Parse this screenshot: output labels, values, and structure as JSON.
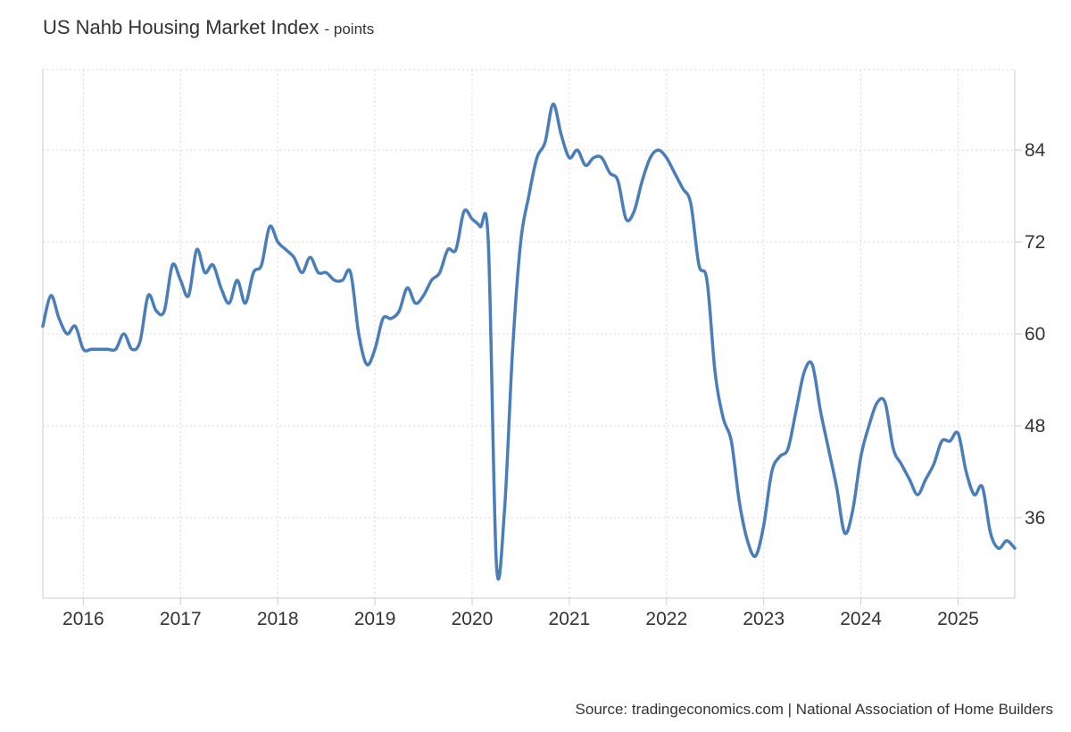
{
  "header": {
    "title": "US Nahb Housing Market Index",
    "unit_label": "- points"
  },
  "footer": {
    "source": "Source: tradingeconomics.com | National Association of Home Builders"
  },
  "colors": {
    "line": "#4a7ebb",
    "grid": "#d9d9d9",
    "axis": "#cccccc",
    "text": "#333333"
  },
  "chart_data": {
    "type": "line",
    "title": "US Nahb Housing Market Index",
    "subtitle": "- points",
    "xlabel": "",
    "ylabel": "",
    "x_tick_labels": [
      "2016",
      "2017",
      "2018",
      "2019",
      "2020",
      "2021",
      "2022",
      "2023",
      "2024",
      "2025"
    ],
    "y_ticks": [
      36,
      48,
      60,
      72,
      84
    ],
    "xlim": [
      "2015-08",
      "2025-08"
    ],
    "ylim": [
      25.5,
      94.5
    ],
    "grid": true,
    "y_axis_position": "right",
    "series": [
      {
        "x": [
          "2015-08",
          "2015-09",
          "2015-10",
          "2015-11",
          "2015-12",
          "2016-01",
          "2016-02",
          "2016-03",
          "2016-04",
          "2016-05",
          "2016-06",
          "2016-07",
          "2016-08",
          "2016-09",
          "2016-10",
          "2016-11",
          "2016-12",
          "2017-01",
          "2017-02",
          "2017-03",
          "2017-04",
          "2017-05",
          "2017-06",
          "2017-07",
          "2017-08",
          "2017-09",
          "2017-10",
          "2017-11",
          "2017-12",
          "2018-01",
          "2018-02",
          "2018-03",
          "2018-04",
          "2018-05",
          "2018-06",
          "2018-07",
          "2018-08",
          "2018-09",
          "2018-10",
          "2018-11",
          "2018-12",
          "2019-01",
          "2019-02",
          "2019-03",
          "2019-04",
          "2019-05",
          "2019-06",
          "2019-07",
          "2019-08",
          "2019-09",
          "2019-10",
          "2019-11",
          "2019-12",
          "2020-01",
          "2020-02",
          "2020-03",
          "2020-04",
          "2020-05",
          "2020-06",
          "2020-07",
          "2020-08",
          "2020-09",
          "2020-10",
          "2020-11",
          "2020-12",
          "2021-01",
          "2021-02",
          "2021-03",
          "2021-04",
          "2021-05",
          "2021-06",
          "2021-07",
          "2021-08",
          "2021-09",
          "2021-10",
          "2021-11",
          "2021-12",
          "2022-01",
          "2022-02",
          "2022-03",
          "2022-04",
          "2022-05",
          "2022-06",
          "2022-07",
          "2022-08",
          "2022-09",
          "2022-10",
          "2022-11",
          "2022-12",
          "2023-01",
          "2023-02",
          "2023-03",
          "2023-04",
          "2023-05",
          "2023-06",
          "2023-07",
          "2023-08",
          "2023-09",
          "2023-10",
          "2023-11",
          "2023-12",
          "2024-01",
          "2024-02",
          "2024-03",
          "2024-04",
          "2024-05",
          "2024-06",
          "2024-07",
          "2024-08",
          "2024-09",
          "2024-10",
          "2024-11",
          "2024-12",
          "2025-01",
          "2025-02",
          "2025-03",
          "2025-04",
          "2025-05",
          "2025-06",
          "2025-07",
          "2025-08"
        ],
        "values": [
          61,
          65,
          62,
          60,
          61,
          58,
          58,
          58,
          58,
          58,
          60,
          58,
          59,
          65,
          63,
          63,
          69,
          67,
          65,
          71,
          68,
          69,
          66,
          64,
          67,
          64,
          68,
          69,
          74,
          72,
          71,
          70,
          68,
          70,
          68,
          68,
          67,
          67,
          68,
          60,
          56,
          58,
          62,
          62,
          63,
          66,
          64,
          65,
          67,
          68,
          71,
          71,
          76,
          75,
          74,
          72,
          30,
          37,
          58,
          72,
          78,
          83,
          85,
          90,
          86,
          83,
          84,
          82,
          83,
          83,
          81,
          80,
          75,
          76,
          80,
          83,
          84,
          83,
          81,
          79,
          77,
          69,
          67,
          55,
          49,
          46,
          38,
          33,
          31,
          35,
          42,
          44,
          45,
          50,
          55,
          56,
          50,
          45,
          40,
          34,
          37,
          44,
          48,
          51,
          51,
          45,
          43,
          41,
          39,
          41,
          43,
          46,
          46,
          47,
          42,
          39,
          40,
          34,
          32,
          33,
          32
        ]
      }
    ]
  }
}
